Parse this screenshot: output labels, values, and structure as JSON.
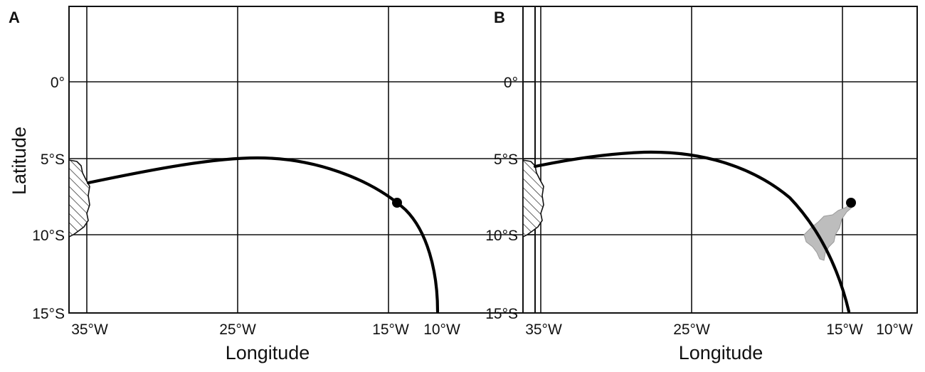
{
  "panels": [
    {
      "letter": "A",
      "xlabel": "Longitude",
      "ylabel": "Latitude",
      "lon_ticks": [
        "35°W",
        "25°W",
        "15°W",
        "10°W"
      ],
      "lat_ticks": [
        "0°",
        "5°S",
        "10°S",
        "15°S"
      ],
      "has_gray_region": false
    },
    {
      "letter": "B",
      "xlabel": "Longitude",
      "ylabel": "",
      "lon_ticks": [
        "35°W",
        "25°W",
        "15°W",
        "10°W"
      ],
      "lat_ticks": [
        "0°",
        "5°S",
        "10°S",
        "15°S"
      ],
      "has_gray_region": true
    }
  ],
  "colors": {
    "track": "#000000",
    "gray_region": "#bdbdbd",
    "grid": "#111111"
  }
}
